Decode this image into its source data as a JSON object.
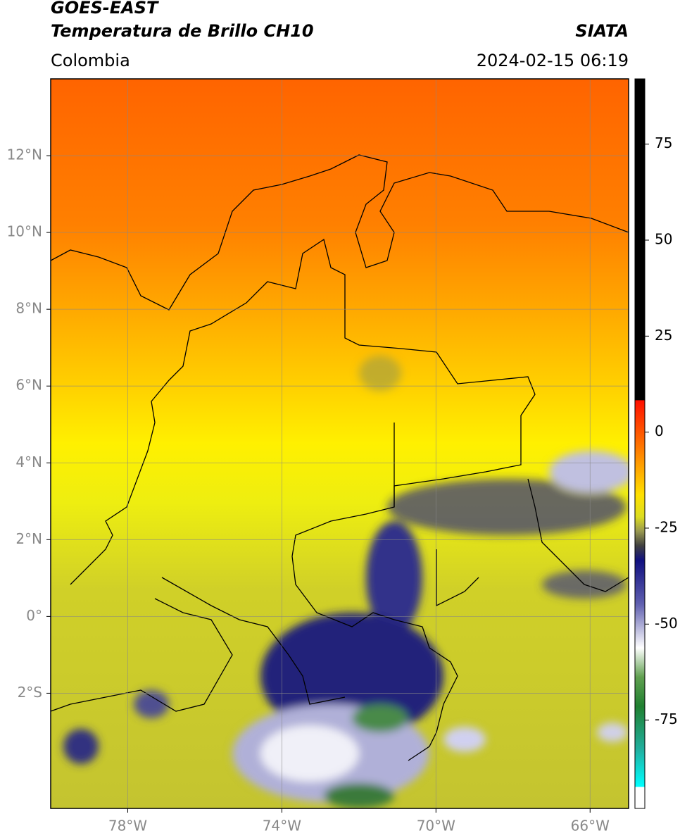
{
  "header": {
    "title": "GOES-EAST",
    "subtitle": "Temperatura de Brillo CH10",
    "source": "SIATA",
    "region": "Colombia",
    "datetime": "2024-02-15 06:19"
  },
  "map": {
    "xlim": [
      -80,
      -65
    ],
    "ylim": [
      -5,
      14
    ],
    "xticks": [
      {
        "value": -78,
        "label": "78°W"
      },
      {
        "value": -74,
        "label": "74°W"
      },
      {
        "value": -70,
        "label": "70°W"
      },
      {
        "value": -66,
        "label": "66°W"
      }
    ],
    "yticks": [
      {
        "value": 12,
        "label": "12°N"
      },
      {
        "value": 10,
        "label": "10°N"
      },
      {
        "value": 8,
        "label": "8°N"
      },
      {
        "value": 6,
        "label": "6°N"
      },
      {
        "value": 4,
        "label": "4°N"
      },
      {
        "value": 2,
        "label": "2°N"
      },
      {
        "value": 0,
        "label": "0°"
      },
      {
        "value": -2,
        "label": "2°S"
      }
    ],
    "grid": true
  },
  "colorbar": {
    "lim": [
      -98,
      92
    ],
    "ticks": [
      75,
      50,
      25,
      0,
      -25,
      -50,
      -75
    ]
  }
}
